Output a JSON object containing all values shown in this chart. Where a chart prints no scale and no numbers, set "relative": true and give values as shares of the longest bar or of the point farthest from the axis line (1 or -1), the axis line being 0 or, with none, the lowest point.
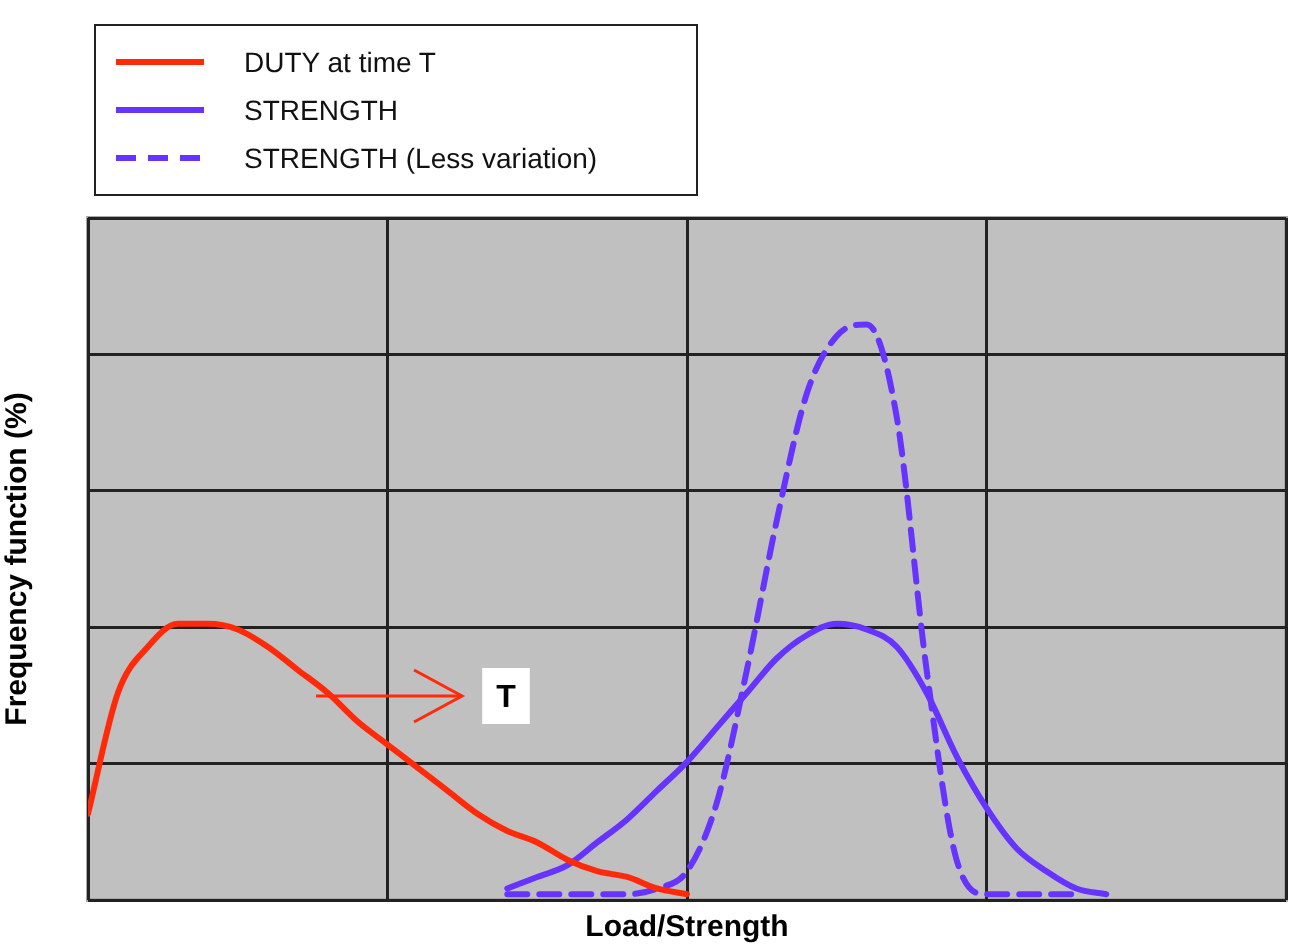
{
  "chart_data": {
    "type": "line",
    "relative": true,
    "xlabel": "Load/Strength",
    "ylabel": "Frequency function (%)",
    "legend": "top left",
    "grid": true,
    "marker": "none",
    "annotations": [
      "T"
    ],
    "categories": [
      null,
      null,
      null,
      null,
      null,
      null,
      null,
      null,
      null,
      null,
      null,
      null,
      null,
      null,
      null,
      null,
      null,
      null,
      null,
      null,
      null,
      null,
      null,
      null,
      null,
      null,
      null,
      null,
      null,
      null,
      null,
      null,
      null,
      null,
      null,
      null,
      null,
      null,
      null,
      null,
      null
    ],
    "series": [
      {
        "name": "DUTY at time T",
        "color": "#ff2a0a",
        "line_style": "solid",
        "values": [
          0.15,
          0.36,
          0.44,
          0.48,
          0.48,
          0.47,
          0.44,
          0.4,
          0.36,
          0.31,
          0.27,
          0.23,
          0.19,
          0.15,
          0.12,
          0.1,
          0.07,
          0.05,
          0.04,
          0.02,
          0.01,
          null,
          null,
          null,
          null,
          null,
          null,
          null,
          null,
          null,
          null,
          null,
          null,
          null,
          null,
          null,
          null,
          null,
          null,
          null,
          null
        ]
      },
      {
        "name": "STRENGTH",
        "color": "#6633ff",
        "line_style": "solid",
        "values": [
          null,
          null,
          null,
          null,
          null,
          null,
          null,
          null,
          null,
          null,
          null,
          null,
          null,
          null,
          0.02,
          0.04,
          0.06,
          0.1,
          0.14,
          0.19,
          0.24,
          0.3,
          0.36,
          0.42,
          0.46,
          0.48,
          0.47,
          0.44,
          0.36,
          0.25,
          0.16,
          0.09,
          0.05,
          0.02,
          0.01,
          null,
          null,
          null,
          null,
          null,
          null
        ]
      },
      {
        "name": "STRENGTH (Less variation)",
        "color": "#6633ff",
        "line_style": "dashed",
        "values": [
          null,
          null,
          null,
          null,
          null,
          null,
          null,
          null,
          null,
          null,
          null,
          null,
          null,
          null,
          0.01,
          0.01,
          0.01,
          0.01,
          0.01,
          0.02,
          0.05,
          0.17,
          0.4,
          0.66,
          0.88,
          0.98,
          1,
          0.84,
          0.4,
          0.07,
          0.01,
          0.01,
          0.01,
          0.01,
          null,
          null,
          null,
          null,
          null,
          null,
          null
        ]
      }
    ]
  }
}
